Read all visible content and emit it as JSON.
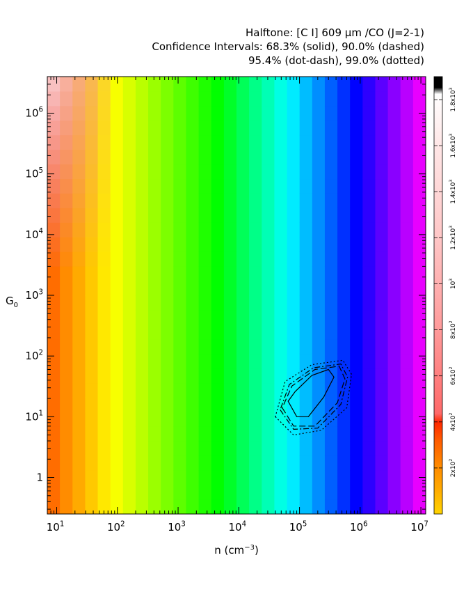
{
  "chart_data": {
    "type": "heatmap",
    "title": [
      "Halftone: [C I] 609 μm /CO (J=2-1)",
      "Confidence Intervals: 68.3% (solid), 90.0% (dashed)",
      "95.4% (dot-dash), 99.0% (dotted)"
    ],
    "xlabel": "n (cm⁻³)",
    "ylabel": "G₀",
    "x_scale": "log",
    "y_scale": "log",
    "xlim": [
      7.0,
      12000000
    ],
    "ylim": [
      0.25,
      4000000
    ],
    "x_ticks": [
      {
        "value": 10,
        "base": "10",
        "exp": "1"
      },
      {
        "value": 100,
        "base": "10",
        "exp": "2"
      },
      {
        "value": 1000,
        "base": "10",
        "exp": "3"
      },
      {
        "value": 10000,
        "base": "10",
        "exp": "4"
      },
      {
        "value": 100000,
        "base": "10",
        "exp": "5"
      },
      {
        "value": 1000000,
        "base": "10",
        "exp": "6"
      },
      {
        "value": 10000000,
        "base": "10",
        "exp": "7"
      }
    ],
    "y_ticks": [
      {
        "value": 1,
        "base": "1",
        "exp": ""
      },
      {
        "value": 10,
        "base": "10",
        "exp": "1"
      },
      {
        "value": 100,
        "base": "10",
        "exp": "2"
      },
      {
        "value": 1000,
        "base": "10",
        "exp": "3"
      },
      {
        "value": 10000,
        "base": "10",
        "exp": "4"
      },
      {
        "value": 100000,
        "base": "10",
        "exp": "5"
      },
      {
        "value": 1000000,
        "base": "10",
        "exp": "6"
      }
    ],
    "grid": {
      "nx": 30,
      "ny": 30,
      "cell_value": "[C I] 609 μm / CO (J=2-1) intensity ratio"
    },
    "colorbar": {
      "range": [
        0,
        1900
      ],
      "ticks": [
        {
          "value": 200,
          "base": "2x10",
          "exp": "2"
        },
        {
          "value": 400,
          "base": "4x10",
          "exp": "2"
        },
        {
          "value": 600,
          "base": "6x10",
          "exp": "2"
        },
        {
          "value": 800,
          "base": "8x10",
          "exp": "2"
        },
        {
          "value": 1000,
          "base": "10",
          "exp": "3"
        },
        {
          "value": 1200,
          "base": "1.2x10",
          "exp": "3"
        },
        {
          "value": 1400,
          "base": "1.4x10",
          "exp": "3"
        },
        {
          "value": 1600,
          "base": "1.6x10",
          "exp": "3"
        },
        {
          "value": 1800,
          "base": "1.8x10",
          "exp": "3"
        }
      ],
      "palette": [
        "#ffd400",
        "#ffa800",
        "#ff8a00",
        "#ff5a00",
        "#ff2800",
        "#ff6a6a",
        "#ff9a9a",
        "#ffc6c6",
        "#ffe6e6",
        "#ffffff",
        "#000000"
      ]
    },
    "confidence_contours": [
      {
        "level": "68.3%",
        "style": "solid",
        "points": [
          [
            65000,
            18
          ],
          [
            90000,
            10
          ],
          [
            140000,
            10
          ],
          [
            250000,
            21
          ],
          [
            370000,
            45
          ],
          [
            300000,
            60
          ],
          [
            160000,
            48
          ],
          [
            85000,
            26
          ]
        ]
      },
      {
        "level": "90.0%",
        "style": "dashed",
        "points": [
          [
            52000,
            14
          ],
          [
            80000,
            7
          ],
          [
            180000,
            7
          ],
          [
            420000,
            17
          ],
          [
            560000,
            42
          ],
          [
            450000,
            68
          ],
          [
            180000,
            60
          ],
          [
            75000,
            32
          ]
        ]
      },
      {
        "level": "95.4%",
        "style": "dot-dash",
        "points": [
          [
            48000,
            13
          ],
          [
            80000,
            6.2
          ],
          [
            200000,
            6.5
          ],
          [
            480000,
            16
          ],
          [
            620000,
            45
          ],
          [
            480000,
            74
          ],
          [
            170000,
            64
          ],
          [
            68000,
            34
          ]
        ]
      },
      {
        "level": "99.0%",
        "style": "dotted",
        "points": [
          [
            40000,
            10
          ],
          [
            80000,
            5.0
          ],
          [
            230000,
            6
          ],
          [
            600000,
            14
          ],
          [
            720000,
            50
          ],
          [
            520000,
            85
          ],
          [
            160000,
            72
          ],
          [
            58000,
            38
          ]
        ]
      }
    ]
  }
}
